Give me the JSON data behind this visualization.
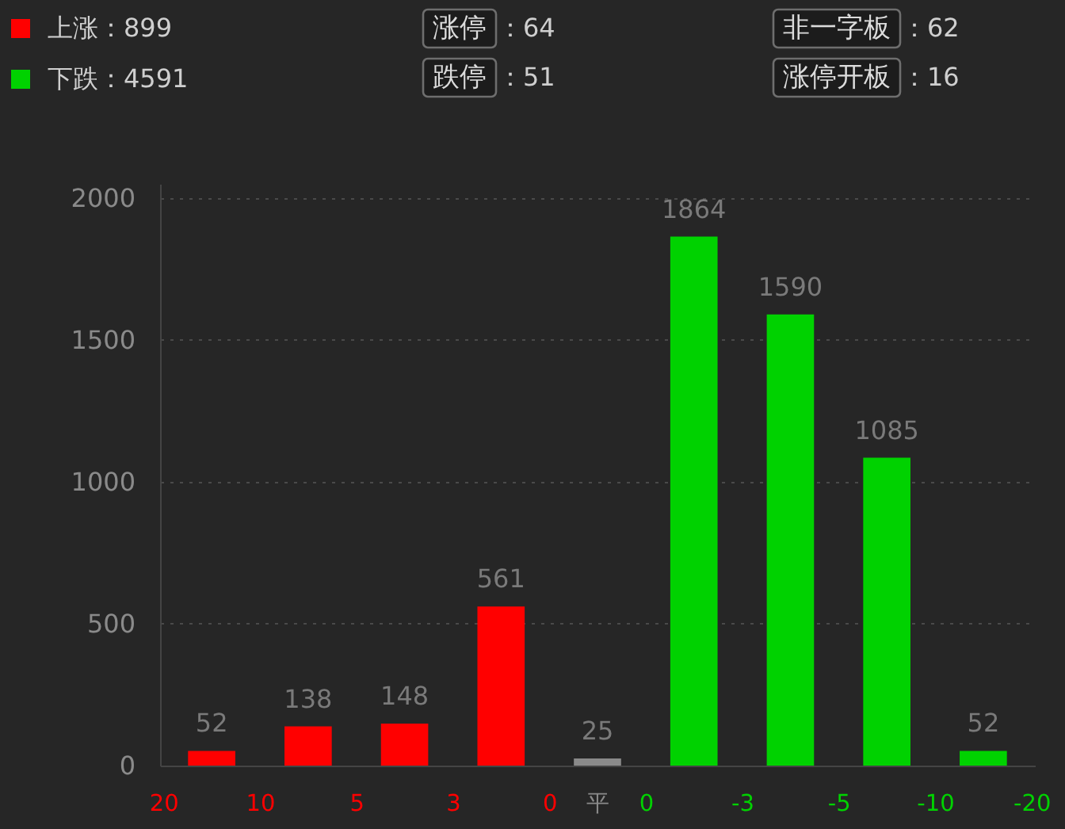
{
  "chart_data": {
    "type": "bar",
    "categories": [
      "20",
      null,
      "10",
      null,
      "5",
      null,
      "3",
      null,
      "0",
      "平",
      "0",
      null,
      "-3",
      null,
      "-5",
      null,
      "-10",
      null,
      "-20"
    ],
    "series": [
      {
        "name": "上涨：899",
        "color": "#ff0000",
        "values": [
          null,
          52,
          null,
          138,
          null,
          148,
          null,
          561,
          null,
          null,
          null,
          null,
          null,
          null,
          null,
          null,
          null,
          null,
          null
        ]
      },
      {
        "color": "#8a8a8a",
        "values": [
          null,
          null,
          null,
          null,
          null,
          null,
          null,
          null,
          null,
          25,
          null,
          null,
          null,
          null,
          null,
          null,
          null,
          null,
          null
        ]
      },
      {
        "name": "下跌：4591",
        "color": "#00d200",
        "values": [
          null,
          null,
          null,
          null,
          null,
          null,
          null,
          null,
          null,
          null,
          null,
          1864,
          null,
          1590,
          null,
          1085,
          null,
          52,
          null
        ]
      }
    ],
    "ylim": [
      0,
      2050
    ],
    "yticks": [
      0,
      500,
      1000,
      1500,
      2000
    ],
    "grid": "y",
    "legend": "top left",
    "data_labels": true,
    "annotations": [
      "涨停：64",
      "非一字板：62",
      "跌停：51",
      "涨停开板：16"
    ]
  }
}
